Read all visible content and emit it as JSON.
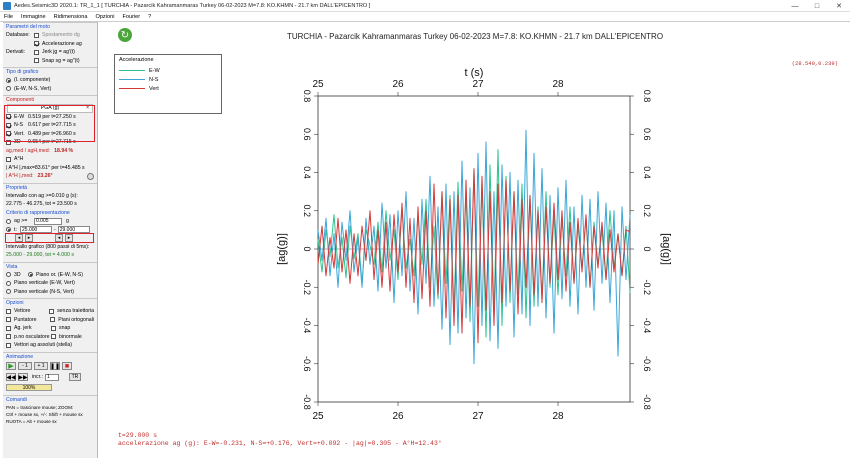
{
  "window": {
    "title": "Aedes.Seismic3D 2020.1: TR_1_1 [ TURCHIA - Pazarcik Kahramanmaras Turkey 06-02-2023 M=7.8: KO.KHMN - 21.7 km DALL'EPICENTRO ]",
    "controls": [
      "—",
      "□",
      "✕"
    ]
  },
  "menu": [
    "File",
    "Immagine",
    "Ridimensiona",
    "Opzioni",
    "Fourier",
    "?"
  ],
  "left": {
    "motion": {
      "title": "Parametri del moto",
      "database_label": "Database:",
      "spostamento": "Spostamento dg",
      "accelerazione": "Accelerazione ag",
      "derivati_label": "Derivati:",
      "jerk": "Jerk jg = ag'(t)",
      "snap": "Snap sg = ag''(t)"
    },
    "graph_type": {
      "title": "Tipo di grafico",
      "opt1": "(I. componente)",
      "opt2": "(E-W, N-S, Vert)"
    },
    "components": {
      "title": "Componenti",
      "pga_header": "PGA (g)",
      "rows": [
        {
          "name": "E-W",
          "text": "0.519 per t=27.250 s"
        },
        {
          "name": "N-S",
          "text": "0.617 per t=27.715 s"
        },
        {
          "name": "Vert.",
          "text": "0.489 per t=26.960 s"
        }
      ],
      "row_3d_name": "3D",
      "row_3d_text": "0.654 per t=27.715 s",
      "ratio_label": "ag,med / agH,med:",
      "ratio_value": "18.94 %",
      "ah_label": "A°H",
      "ah_max": "| A°H |,max=83.61° per t=45.485 s",
      "ah_med_label": "| A°H |,med:",
      "ah_med_value": "23.26°"
    },
    "props": {
      "title": "Proprietà",
      "interval_text": "Intervallo con ag >=0.010 g (s):",
      "interval_values": "22.775 - 46.275, tot = 23.500 s",
      "criterion": "Criterio di rappresentazione",
      "ag_label": "ag >=",
      "ag_value": "0.005",
      "ag_unit": "g",
      "t_label": "t:",
      "t_from": "25.000",
      "t_to": "29.000",
      "grafico_text": "Intervallo grafico (800 passi di 5ms):",
      "grafico_values": "25.000 - 29.000, tot = 4.000 s"
    },
    "view": {
      "title": "Vista",
      "o3d": "3D",
      "pianoxy": "Piano or. (E-W, N-S)",
      "piano1": "Piano verticale (E-W, Vert)",
      "piano2": "Piano verticale (N-S, Vert)"
    },
    "options": {
      "title": "Opzioni",
      "vettore": "Vettore",
      "senza": "senza traiettoria",
      "puntatore": "Puntatore",
      "piani": "Piani ortogonali",
      "agjerk": "Ag. jerk",
      "snap": "snap",
      "osculatore": "p.no osculatore",
      "binormale": "binormale",
      "vettori": "Vettori ag assoluti (stella)"
    },
    "anim": {
      "title": "Animazione",
      "minus1": "- 1",
      "plus1": "+ 1",
      "incr_label": "incr.:",
      "incr_value": "1",
      "tr": "TR",
      "progress": "100%"
    },
    "commands": {
      "title": "Comandi",
      "line1": "PAN = trascinare mouse; ZOOM:",
      "line2": "Ctrl + mouse sx, +/-: Shift + mouse sx",
      "line3": "RUOTA = Alt + mouse sx"
    }
  },
  "chart_title": "TURCHIA - Pazarcik Kahramanmaras Turkey 06-02-2023 M=7.8: KO.KHMN - 21.7 km DALL'EPICENTRO",
  "coord_readout": "(28.540,0.239)",
  "status": {
    "line1": "t=29.000 s",
    "line2": "accelerazione ag (g): E-W=-0.231, N-S=+0.176, Vert=+0.092 - |ag|=0.305 - A°H=12.43°"
  },
  "colors": {
    "ew": "#2fc48f",
    "ns": "#3aa6d8",
    "vert": "#d63838",
    "accent": "#e0202a"
  },
  "chart_data": {
    "type": "line",
    "xlabel": "t (s)",
    "ylabel": "[ag(g)]",
    "xlim": [
      25,
      28.9
    ],
    "ylim": [
      -0.8,
      0.8
    ],
    "xticks": [
      25,
      26,
      27,
      28
    ],
    "yticks": [
      -0.8,
      -0.6,
      -0.4,
      -0.2,
      0,
      0.2,
      0.4,
      0.6,
      0.8
    ],
    "legend_title": "Accelerazione",
    "legend_position": "top-left",
    "series": [
      {
        "name": "E-W",
        "color": "#2fc48f",
        "x": [
          25.0,
          25.05,
          25.1,
          25.15,
          25.2,
          25.25,
          25.3,
          25.35,
          25.4,
          25.45,
          25.5,
          25.55,
          25.6,
          25.65,
          25.7,
          25.75,
          25.8,
          25.85,
          25.9,
          25.95,
          26.0,
          26.05,
          26.1,
          26.15,
          26.2,
          26.25,
          26.3,
          26.35,
          26.4,
          26.45,
          26.5,
          26.55,
          26.6,
          26.65,
          26.7,
          26.75,
          26.8,
          26.85,
          26.9,
          26.95,
          27.0,
          27.05,
          27.1,
          27.15,
          27.2,
          27.25,
          27.3,
          27.35,
          27.4,
          27.45,
          27.5,
          27.55,
          27.6,
          27.65,
          27.7,
          27.75,
          27.8,
          27.85,
          27.9,
          27.95,
          28.0,
          28.05,
          28.1,
          28.15,
          28.2,
          28.25,
          28.3,
          28.35,
          28.4,
          28.45,
          28.5,
          28.55,
          28.6,
          28.65,
          28.7,
          28.75,
          28.8,
          28.85,
          28.9
        ],
        "values": [
          0.05,
          -0.12,
          0.1,
          -0.04,
          0.18,
          -0.1,
          0.06,
          -0.15,
          0.12,
          -0.05,
          0.08,
          -0.18,
          0.1,
          0.02,
          -0.08,
          0.14,
          -0.12,
          0.2,
          -0.06,
          0.1,
          -0.16,
          0.22,
          -0.1,
          0.05,
          -0.14,
          0.18,
          -0.08,
          0.26,
          -0.2,
          0.12,
          -0.26,
          0.3,
          -0.18,
          0.28,
          -0.32,
          0.35,
          -0.22,
          0.3,
          -0.38,
          0.42,
          -0.3,
          0.36,
          -0.46,
          0.44,
          -0.34,
          0.52,
          -0.4,
          0.38,
          -0.28,
          0.3,
          -0.24,
          0.34,
          -0.36,
          0.28,
          -0.3,
          0.22,
          -0.26,
          0.3,
          -0.2,
          0.18,
          -0.24,
          0.16,
          -0.14,
          0.22,
          -0.18,
          0.12,
          -0.1,
          0.16,
          -0.2,
          0.14,
          -0.08,
          0.1,
          -0.16,
          0.2,
          -0.1,
          0.08,
          -0.14,
          0.12,
          -0.23
        ]
      },
      {
        "name": "N-S",
        "color": "#3aa6d8",
        "x": [
          25.0,
          25.05,
          25.1,
          25.15,
          25.2,
          25.25,
          25.3,
          25.35,
          25.4,
          25.45,
          25.5,
          25.55,
          25.6,
          25.65,
          25.7,
          25.75,
          25.8,
          25.85,
          25.9,
          25.95,
          26.0,
          26.05,
          26.1,
          26.15,
          26.2,
          26.25,
          26.3,
          26.35,
          26.4,
          26.45,
          26.5,
          26.55,
          26.6,
          26.65,
          26.7,
          26.75,
          26.8,
          26.85,
          26.9,
          26.95,
          27.0,
          27.05,
          27.1,
          27.15,
          27.2,
          27.25,
          27.3,
          27.35,
          27.4,
          27.45,
          27.5,
          27.55,
          27.6,
          27.65,
          27.7,
          27.75,
          27.8,
          27.85,
          27.9,
          27.95,
          28.0,
          28.05,
          28.1,
          28.15,
          28.2,
          28.25,
          28.3,
          28.35,
          28.4,
          28.45,
          28.5,
          28.55,
          28.6,
          28.65,
          28.7,
          28.75,
          28.8,
          28.85,
          28.9
        ],
        "values": [
          0.1,
          -0.06,
          0.16,
          -0.14,
          0.08,
          -0.2,
          0.14,
          -0.06,
          0.2,
          -0.12,
          0.06,
          -0.2,
          0.16,
          -0.08,
          0.12,
          -0.22,
          0.24,
          -0.1,
          0.18,
          -0.28,
          0.2,
          -0.14,
          0.3,
          -0.22,
          0.16,
          -0.34,
          0.26,
          -0.18,
          0.38,
          -0.3,
          0.22,
          -0.42,
          0.34,
          -0.5,
          0.3,
          -0.44,
          0.46,
          -0.36,
          0.32,
          -0.6,
          0.5,
          -0.4,
          0.56,
          -0.48,
          0.3,
          -0.52,
          0.44,
          -0.3,
          0.4,
          -0.46,
          0.36,
          -0.34,
          0.62,
          -0.4,
          0.5,
          -0.3,
          0.42,
          -0.36,
          0.28,
          -0.44,
          0.32,
          -0.26,
          0.36,
          -0.3,
          0.22,
          -0.34,
          0.28,
          -0.2,
          0.26,
          -0.32,
          0.3,
          -0.18,
          0.24,
          -0.28,
          0.2,
          -0.56,
          0.22,
          -0.16,
          0.18
        ]
      },
      {
        "name": "Vert",
        "color": "#d63838",
        "x": [
          25.0,
          25.05,
          25.1,
          25.15,
          25.2,
          25.25,
          25.3,
          25.35,
          25.4,
          25.45,
          25.5,
          25.55,
          25.6,
          25.65,
          25.7,
          25.75,
          25.8,
          25.85,
          25.9,
          25.95,
          26.0,
          26.05,
          26.1,
          26.15,
          26.2,
          26.25,
          26.3,
          26.35,
          26.4,
          26.45,
          26.5,
          26.55,
          26.6,
          26.65,
          26.7,
          26.75,
          26.8,
          26.85,
          26.9,
          26.95,
          27.0,
          27.05,
          27.1,
          27.15,
          27.2,
          27.25,
          27.3,
          27.35,
          27.4,
          27.45,
          27.5,
          27.55,
          27.6,
          27.65,
          27.7,
          27.75,
          27.8,
          27.85,
          27.9,
          27.95,
          28.0,
          28.05,
          28.1,
          28.15,
          28.2,
          28.25,
          28.3,
          28.35,
          28.4,
          28.45,
          28.5,
          28.55,
          28.6,
          28.65,
          28.7,
          28.75,
          28.8,
          28.85,
          28.9
        ],
        "values": [
          -0.08,
          0.12,
          -0.14,
          0.06,
          -0.1,
          0.16,
          -0.12,
          0.1,
          -0.18,
          0.08,
          -0.14,
          0.12,
          -0.06,
          0.2,
          -0.16,
          0.1,
          -0.2,
          0.14,
          -0.22,
          0.18,
          -0.12,
          0.24,
          -0.2,
          0.16,
          -0.28,
          0.22,
          -0.26,
          0.2,
          -0.3,
          0.34,
          -0.24,
          0.3,
          -0.36,
          0.26,
          -0.4,
          0.28,
          -0.44,
          0.36,
          -0.3,
          0.42,
          -0.49,
          0.38,
          -0.32,
          0.3,
          -0.4,
          0.34,
          -0.28,
          0.36,
          -0.22,
          0.3,
          -0.34,
          0.26,
          -0.2,
          0.28,
          -0.24,
          0.2,
          -0.28,
          0.22,
          -0.18,
          0.24,
          -0.16,
          0.2,
          -0.22,
          0.14,
          -0.18,
          0.16,
          -0.12,
          0.18,
          -0.2,
          0.12,
          -0.1,
          0.14,
          -0.16,
          0.1,
          -0.12,
          0.08,
          -0.14,
          0.1,
          0.09
        ]
      }
    ]
  }
}
